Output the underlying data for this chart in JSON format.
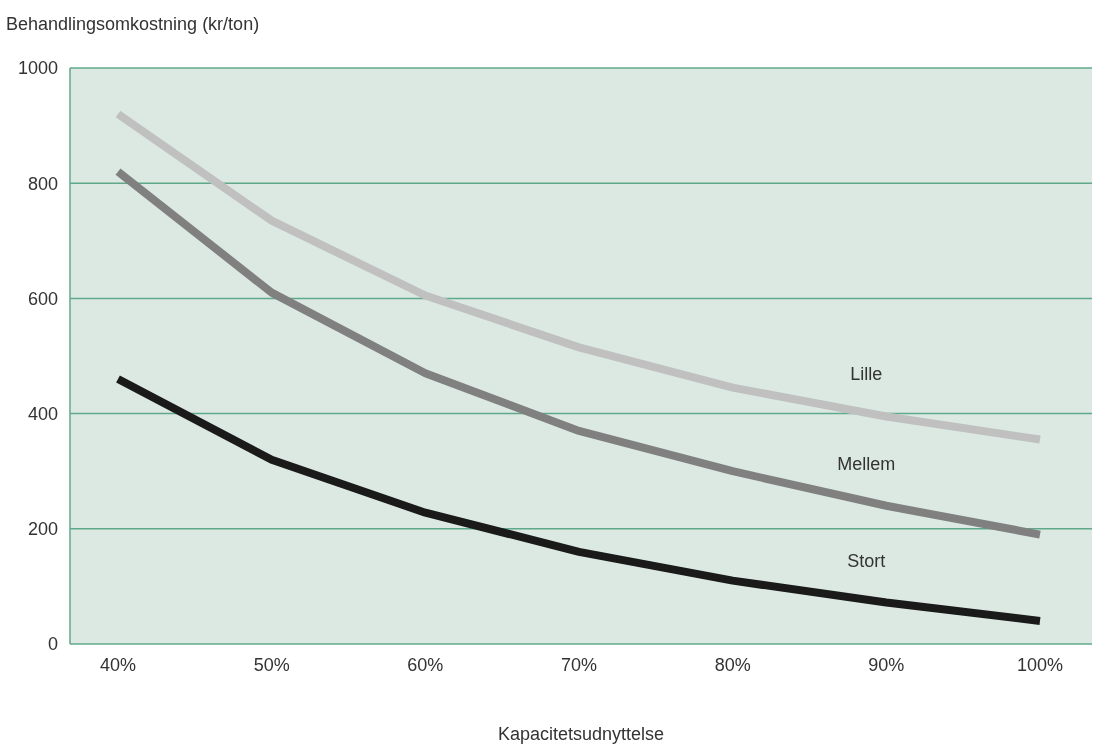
{
  "chart_data": {
    "type": "line",
    "ylabel": "Behandlingsomkostning (kr/ton)",
    "xlabel": "Kapacitetsudnyttelse",
    "categories": [
      "40%",
      "50%",
      "60%",
      "70%",
      "80%",
      "90%",
      "100%"
    ],
    "series": [
      {
        "name": "Lille",
        "color": "#c0c0c0",
        "values": [
          920,
          735,
          605,
          515,
          445,
          395,
          355
        ]
      },
      {
        "name": "Mellem",
        "color": "#808080",
        "values": [
          820,
          610,
          470,
          370,
          300,
          240,
          190
        ]
      },
      {
        "name": "Stort",
        "color": "#1a1a1a",
        "values": [
          460,
          320,
          228,
          160,
          110,
          72,
          40
        ]
      }
    ],
    "ylim": [
      0,
      1000
    ],
    "yticks": [
      0,
      200,
      400,
      600,
      800,
      1000
    ],
    "grid": "y",
    "marker": "none",
    "line_style": "solid"
  }
}
